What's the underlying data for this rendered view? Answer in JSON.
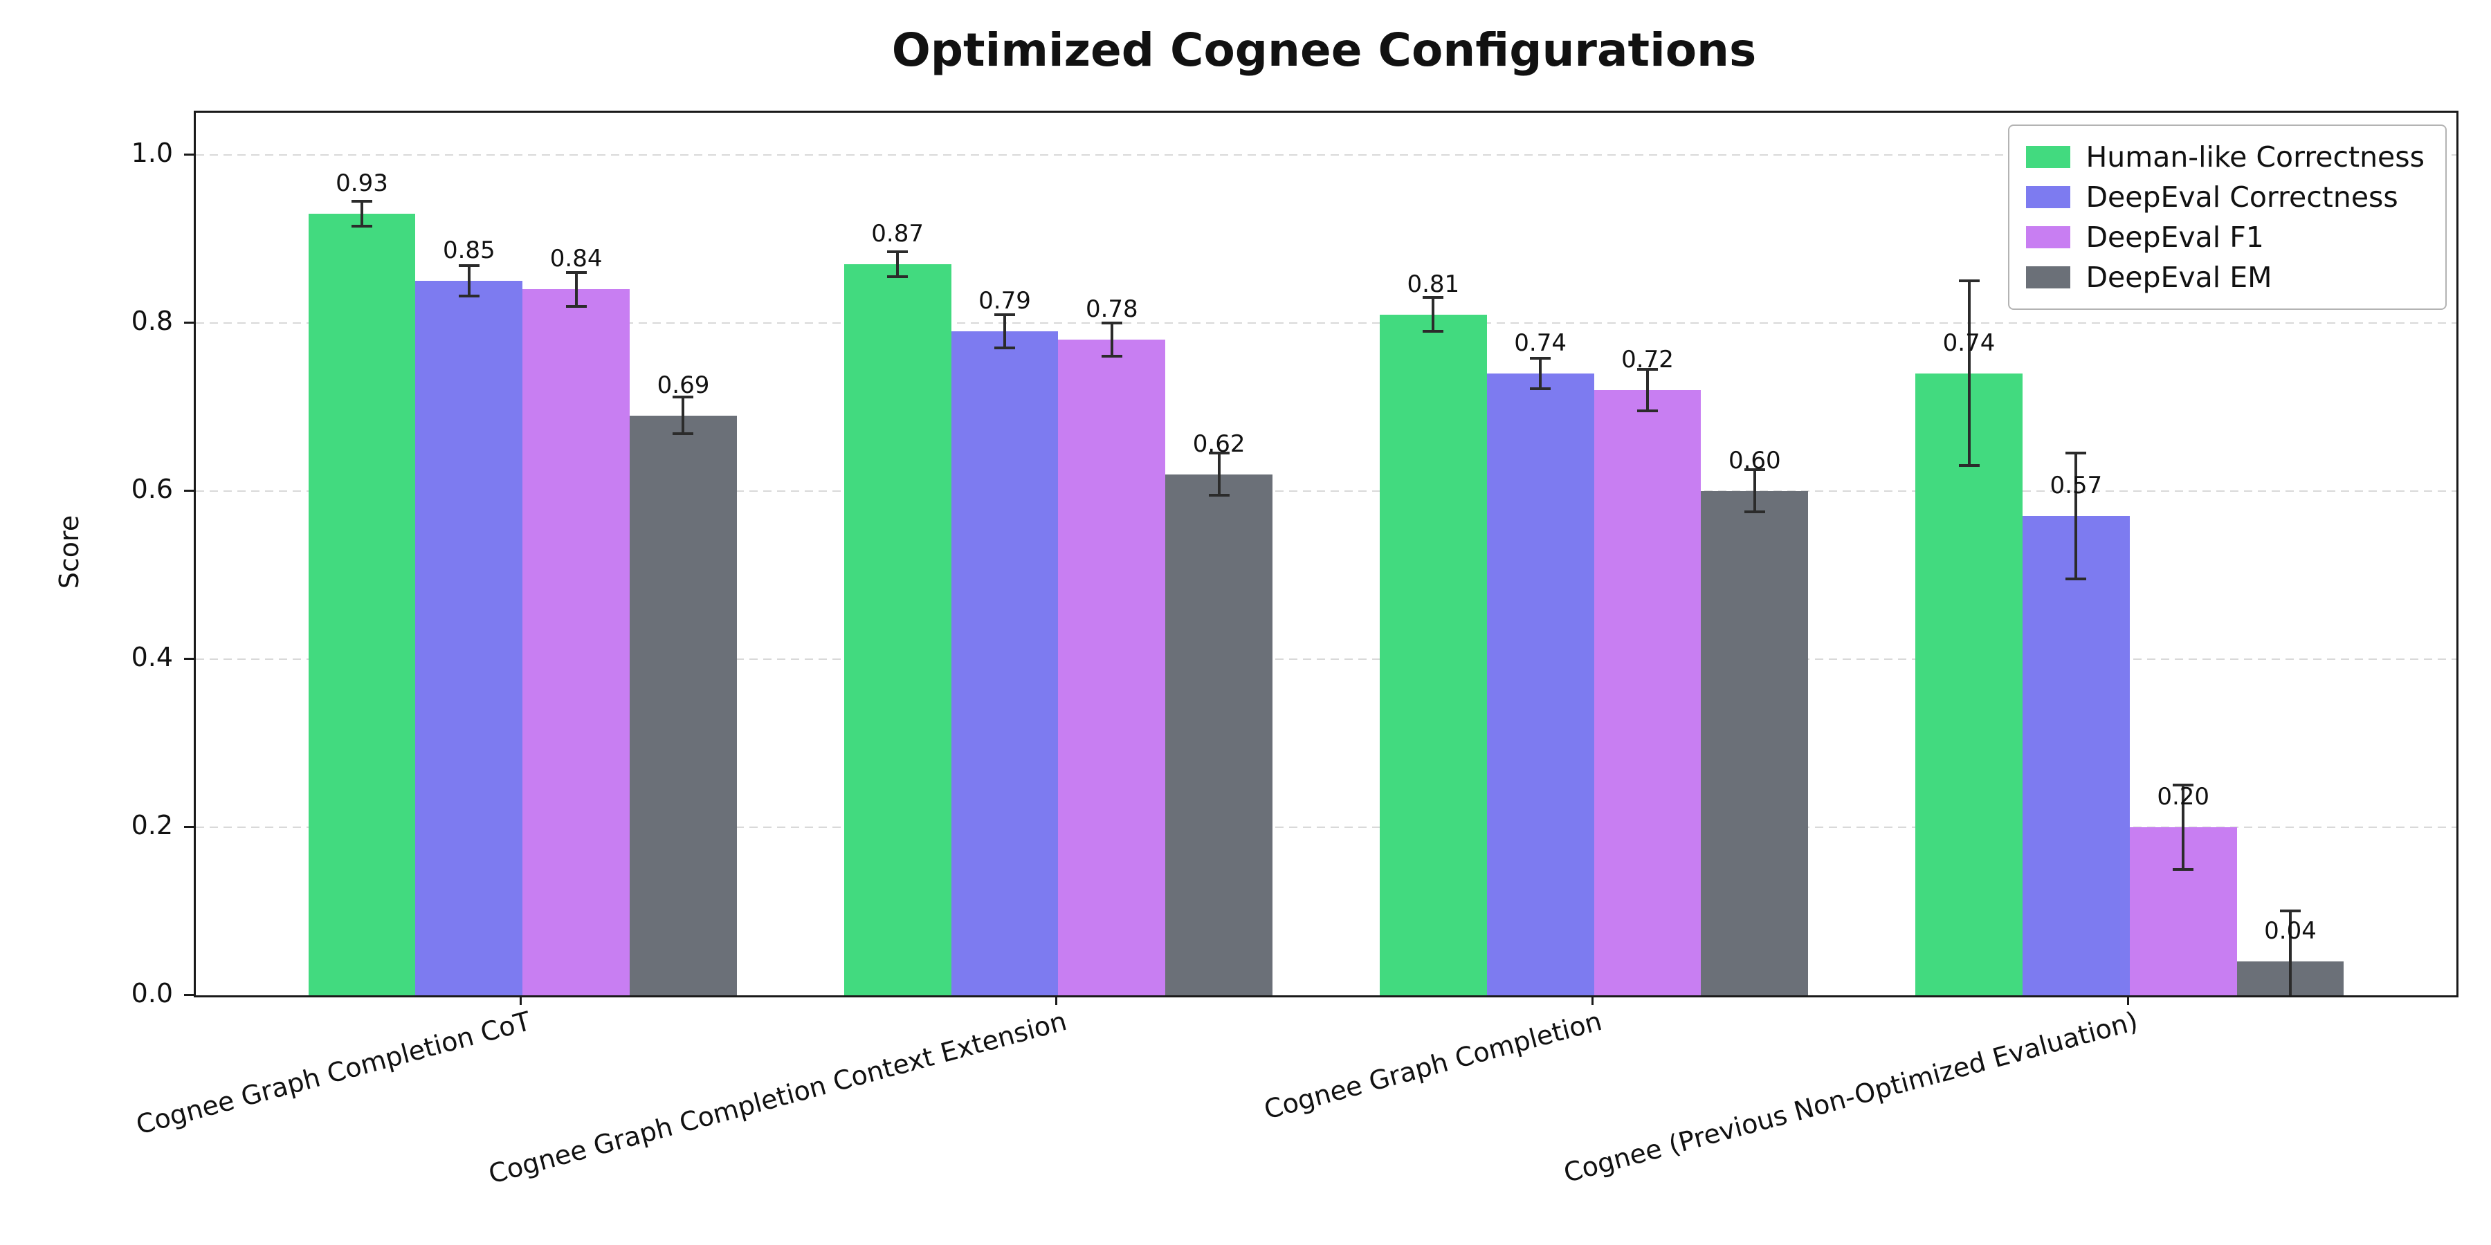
{
  "chart_data": {
    "type": "bar",
    "title": "Optimized Cognee Configurations",
    "xlabel": "",
    "ylabel": "Score",
    "ylim": [
      0,
      1.05
    ],
    "yticks": [
      0.0,
      0.2,
      0.4,
      0.6,
      0.8,
      1.0
    ],
    "grid": "horizontal-dashed",
    "legend_position": "upper right",
    "error_bars": true,
    "bar_label_format": "2-decimals",
    "categories": [
      "Cognee Graph Completion CoT",
      "Cognee Graph Completion Context Extension",
      "Cognee Graph Completion",
      "Cognee (Previous Non-Optimized Evaluation)"
    ],
    "series": [
      {
        "name": "Human-like Correctness",
        "color": "#42da7f",
        "values": [
          0.93,
          0.87,
          0.81,
          0.74
        ],
        "errors": [
          0.015,
          0.015,
          0.02,
          0.11
        ]
      },
      {
        "name": "DeepEval Correctness",
        "color": "#7d7bf0",
        "values": [
          0.85,
          0.79,
          0.74,
          0.57
        ],
        "errors": [
          0.018,
          0.02,
          0.018,
          0.075
        ]
      },
      {
        "name": "DeepEval F1",
        "color": "#c87ef2",
        "values": [
          0.84,
          0.78,
          0.72,
          0.2
        ],
        "errors": [
          0.02,
          0.02,
          0.025,
          0.05
        ]
      },
      {
        "name": "DeepEval EM",
        "color": "#6b7078",
        "values": [
          0.69,
          0.62,
          0.6,
          0.04
        ],
        "errors": [
          0.022,
          0.025,
          0.025,
          0.06
        ]
      }
    ]
  }
}
